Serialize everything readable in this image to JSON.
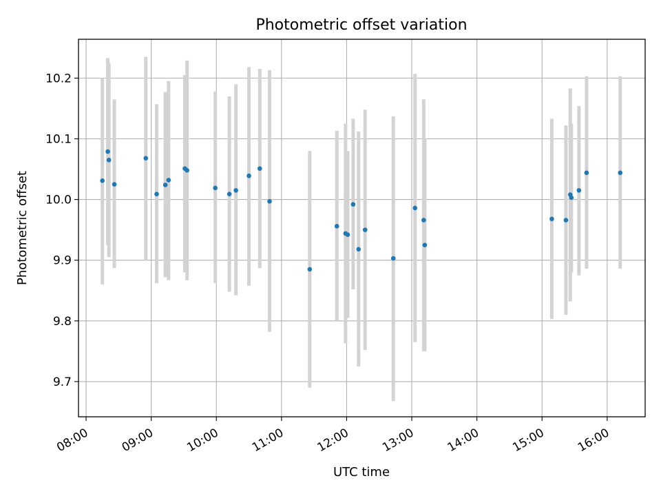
{
  "chart_data": {
    "type": "scatter",
    "title": "Photometric offset variation",
    "xlabel": "UTC time",
    "ylabel": "Photometric offset",
    "grid": true,
    "xlim": [
      "07:53",
      "16:35"
    ],
    "ylim": [
      9.642,
      10.264
    ],
    "x_ticks": [
      "08:00",
      "09:00",
      "10:00",
      "11:00",
      "12:00",
      "13:00",
      "14:00",
      "15:00",
      "16:00"
    ],
    "y_ticks": [
      "9.7",
      "9.8",
      "9.9",
      "10.0",
      "10.1",
      "10.2"
    ],
    "colors": {
      "point": "#1f77b4",
      "error_bar": "#d3d3d3"
    },
    "series": [
      {
        "points": [
          {
            "x": "08:15",
            "y": 10.031,
            "lo": 9.86,
            "hi": 10.2
          },
          {
            "x": "08:20",
            "y": 10.079,
            "lo": 9.925,
            "hi": 10.233
          },
          {
            "x": "08:21",
            "y": 10.065,
            "lo": 9.905,
            "hi": 10.225
          },
          {
            "x": "08:26",
            "y": 10.025,
            "lo": 9.887,
            "hi": 10.165
          },
          {
            "x": "08:55",
            "y": 10.068,
            "lo": 9.9,
            "hi": 10.235
          },
          {
            "x": "09:05",
            "y": 10.009,
            "lo": 9.862,
            "hi": 10.157
          },
          {
            "x": "09:13",
            "y": 10.024,
            "lo": 9.872,
            "hi": 10.177
          },
          {
            "x": "09:16",
            "y": 10.032,
            "lo": 9.867,
            "hi": 10.195
          },
          {
            "x": "09:31",
            "y": 10.051,
            "lo": 9.88,
            "hi": 10.205
          },
          {
            "x": "09:33",
            "y": 10.048,
            "lo": 9.867,
            "hi": 10.229
          },
          {
            "x": "09:59",
            "y": 10.019,
            "lo": 9.862,
            "hi": 10.178
          },
          {
            "x": "10:12",
            "y": 10.009,
            "lo": 9.848,
            "hi": 10.17
          },
          {
            "x": "10:18",
            "y": 10.015,
            "lo": 9.842,
            "hi": 10.19
          },
          {
            "x": "10:30",
            "y": 10.039,
            "lo": 9.858,
            "hi": 10.218
          },
          {
            "x": "10:40",
            "y": 10.051,
            "lo": 9.887,
            "hi": 10.215
          },
          {
            "x": "10:49",
            "y": 9.997,
            "lo": 9.782,
            "hi": 10.213
          },
          {
            "x": "11:26",
            "y": 9.885,
            "lo": 9.69,
            "hi": 10.08
          },
          {
            "x": "11:51",
            "y": 9.956,
            "lo": 9.8,
            "hi": 10.113
          },
          {
            "x": "11:59",
            "y": 9.944,
            "lo": 9.763,
            "hi": 10.125
          },
          {
            "x": "12:01",
            "y": 9.942,
            "lo": 9.805,
            "hi": 10.08
          },
          {
            "x": "12:06",
            "y": 9.992,
            "lo": 9.852,
            "hi": 10.133
          },
          {
            "x": "12:11",
            "y": 9.918,
            "lo": 9.725,
            "hi": 10.112
          },
          {
            "x": "12:17",
            "y": 9.95,
            "lo": 9.752,
            "hi": 10.148
          },
          {
            "x": "12:43",
            "y": 9.903,
            "lo": 9.668,
            "hi": 10.137
          },
          {
            "x": "13:03",
            "y": 9.986,
            "lo": 9.765,
            "hi": 10.207
          },
          {
            "x": "13:11",
            "y": 9.966,
            "lo": 9.75,
            "hi": 10.165
          },
          {
            "x": "13:12",
            "y": 9.925,
            "lo": 9.75,
            "hi": 10.1
          },
          {
            "x": "15:09",
            "y": 9.968,
            "lo": 9.803,
            "hi": 10.133
          },
          {
            "x": "15:22",
            "y": 9.966,
            "lo": 9.81,
            "hi": 10.122
          },
          {
            "x": "15:26",
            "y": 10.008,
            "lo": 9.832,
            "hi": 10.183
          },
          {
            "x": "15:27",
            "y": 10.003,
            "lo": 9.88,
            "hi": 10.125
          },
          {
            "x": "15:34",
            "y": 10.015,
            "lo": 9.875,
            "hi": 10.154
          },
          {
            "x": "15:41",
            "y": 10.044,
            "lo": 9.886,
            "hi": 10.203
          },
          {
            "x": "16:12",
            "y": 10.044,
            "lo": 9.886,
            "hi": 10.203
          }
        ]
      }
    ]
  }
}
